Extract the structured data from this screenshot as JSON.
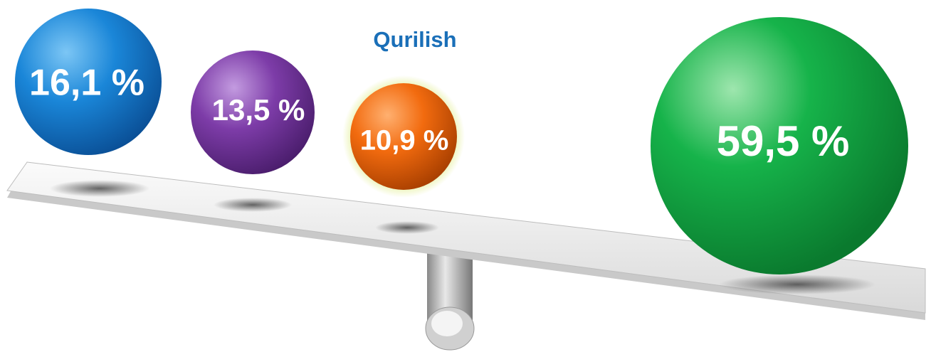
{
  "title": "Qurilish",
  "balls": [
    {
      "label": "16,1 %"
    },
    {
      "label": "13,5 %"
    },
    {
      "label": "10,9 %"
    },
    {
      "label": "59,5 %"
    }
  ]
}
